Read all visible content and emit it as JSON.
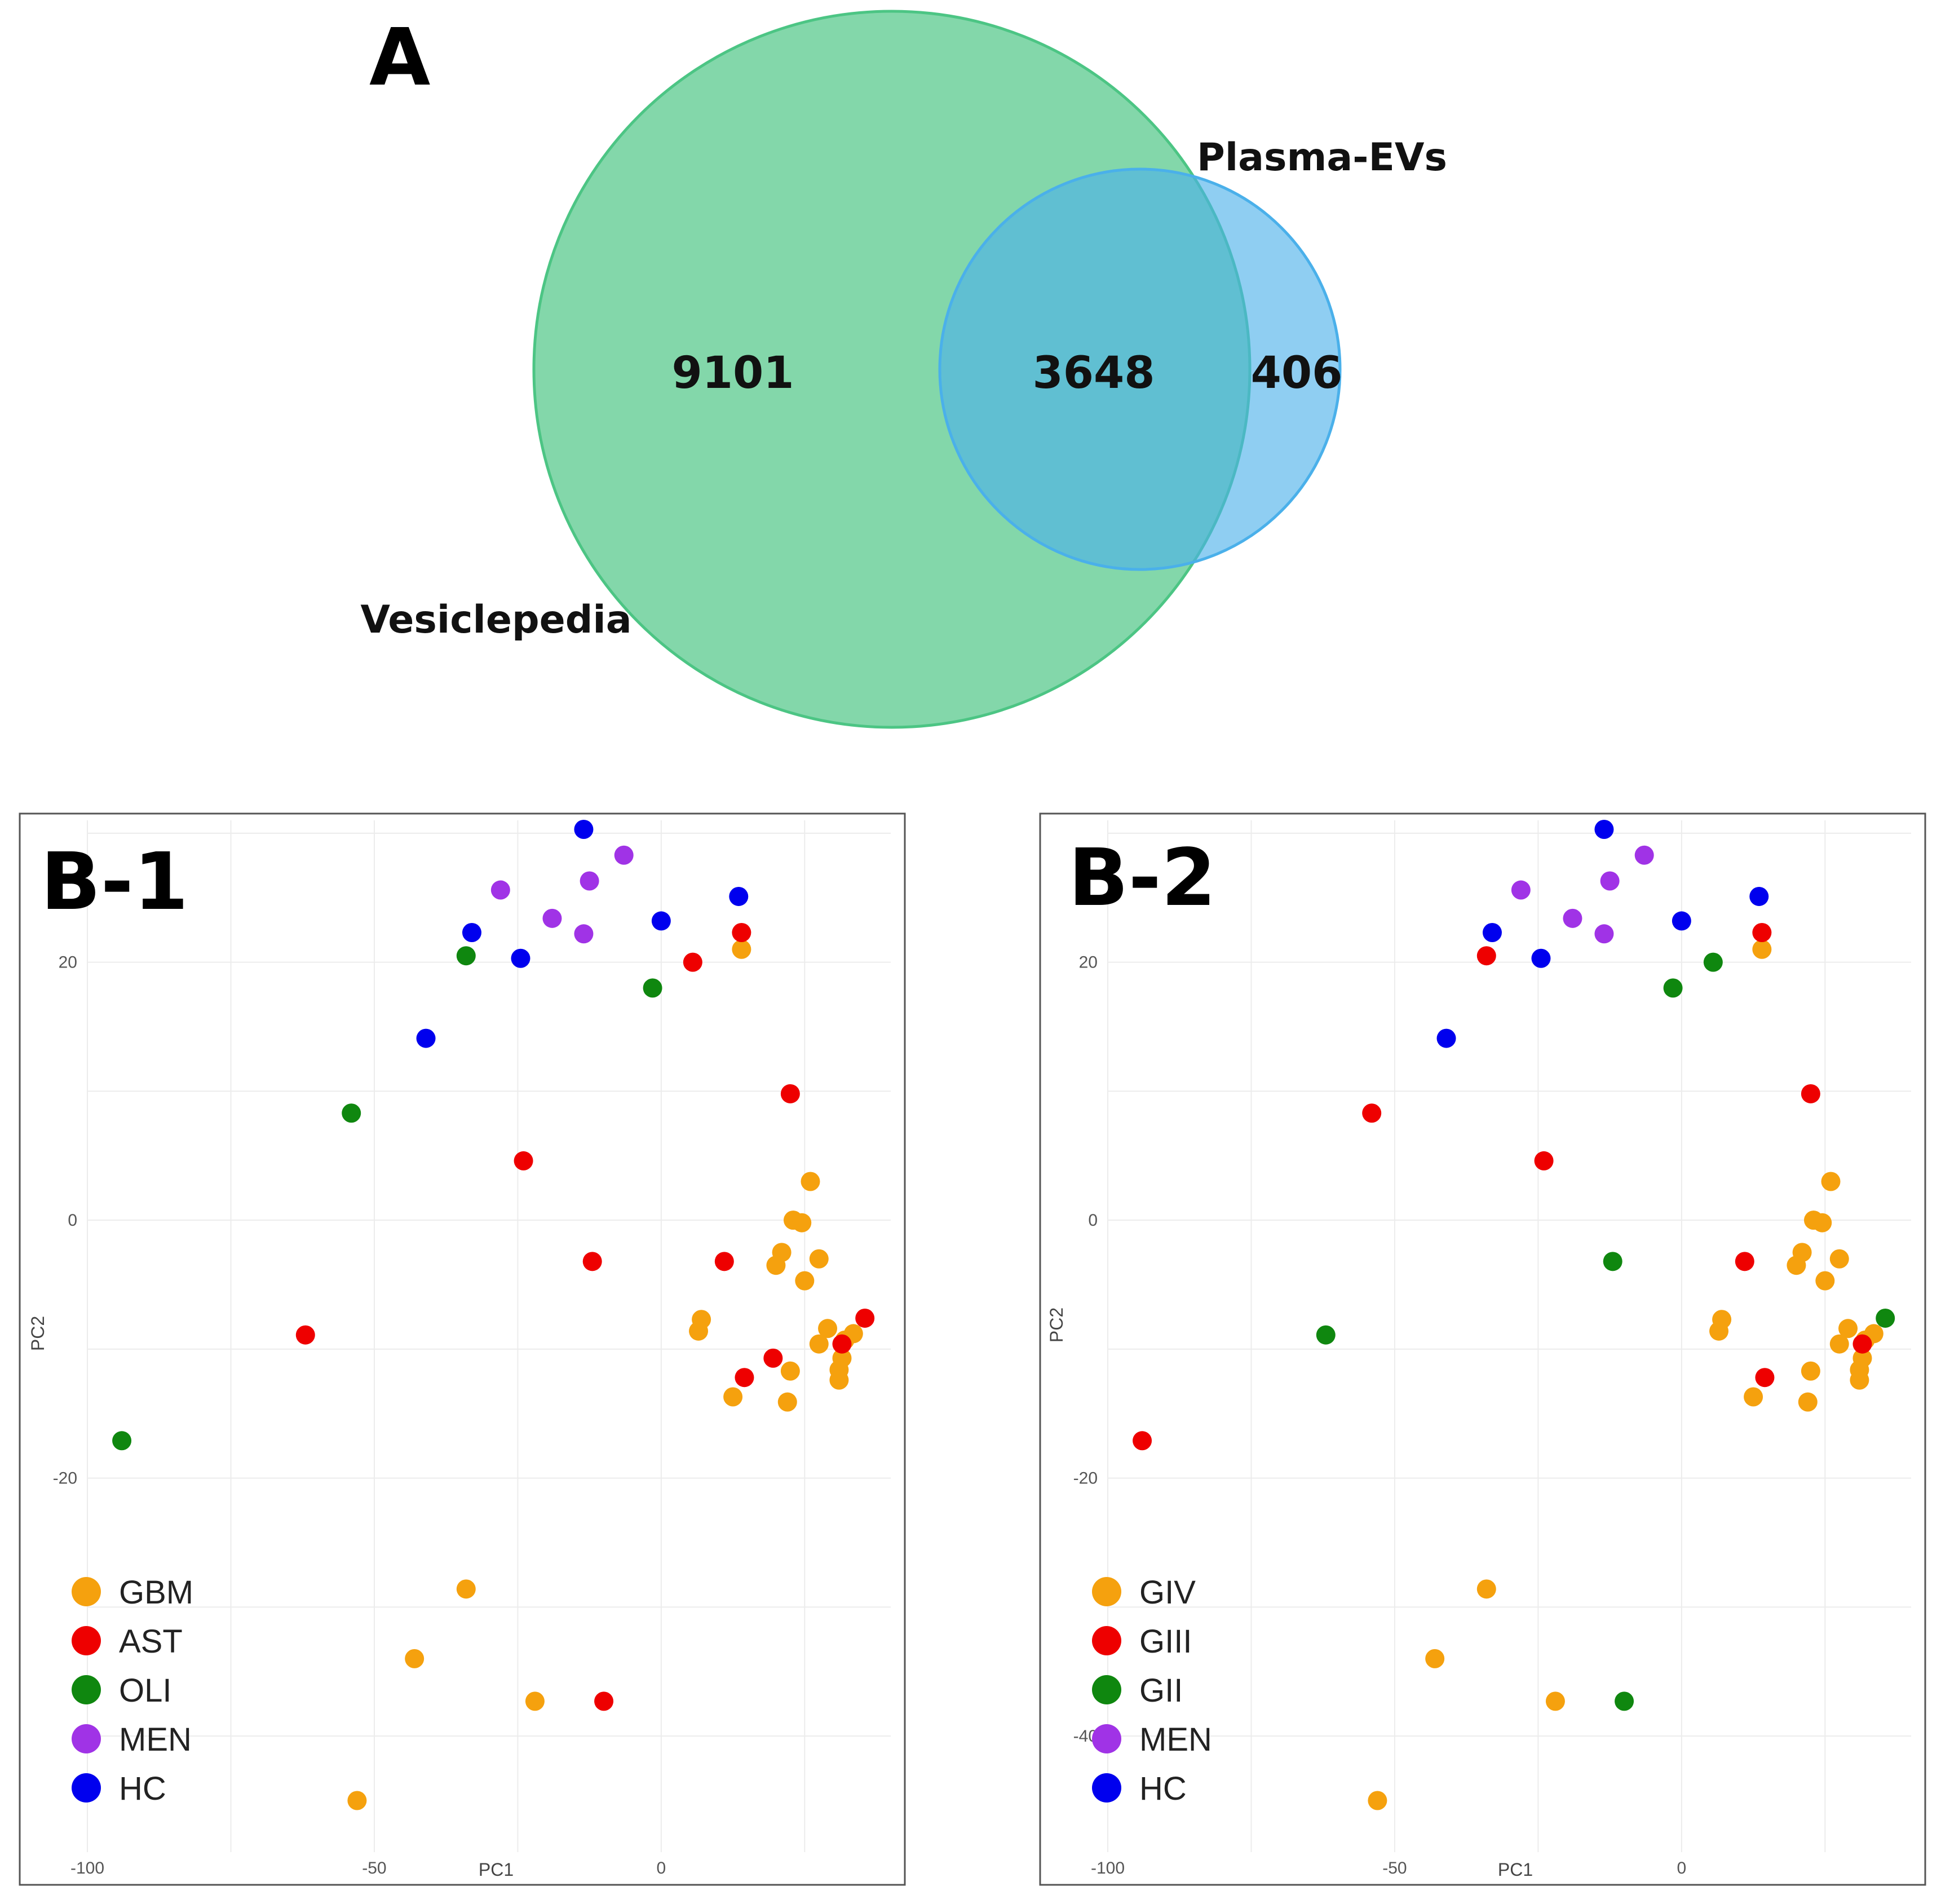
{
  "colors": {
    "GBM": "#f5a10e",
    "AST": "#ee0000",
    "OLI": "#0f870f",
    "MEN": "#a033e6",
    "HC": "#0000ee",
    "GIV": "#f5a10e",
    "GIII": "#ee0000",
    "GII": "#0f870f",
    "venn_left": "#4cc584",
    "venn_right": "#4ab0ea"
  },
  "chart_data": [
    {
      "type": "venn",
      "panel_label": "A",
      "sets": [
        {
          "name": "Vesiclepedia",
          "only": 9101
        },
        {
          "name": "Plasma-EVs",
          "only": 406
        }
      ],
      "intersection": 3648
    },
    {
      "type": "scatter",
      "panel_label": "B-1",
      "xlabel": "PC1",
      "ylabel": "PC2",
      "xlim": [
        -100,
        40
      ],
      "ylim": [
        -49,
        31
      ],
      "xticks": [
        -100,
        -50,
        0
      ],
      "yticks": [
        20,
        0,
        -20
      ],
      "legend": [
        "GBM",
        "AST",
        "OLI",
        "MEN",
        "HC"
      ],
      "series": [
        {
          "name": "GBM",
          "points": [
            [
              14,
              21
            ],
            [
              26,
              3
            ],
            [
              23,
              0
            ],
            [
              24.5,
              -0.2
            ],
            [
              21,
              -2.5
            ],
            [
              20,
              -3.5
            ],
            [
              27.5,
              -3
            ],
            [
              25,
              -4.7
            ],
            [
              7,
              -7.7
            ],
            [
              6.5,
              -8.6
            ],
            [
              29,
              -8.4
            ],
            [
              27.5,
              -9.6
            ],
            [
              33.5,
              -8.8
            ],
            [
              32,
              -9.3
            ],
            [
              31.5,
              -10.7
            ],
            [
              31,
              -11.6
            ],
            [
              31,
              -12.4
            ],
            [
              22.5,
              -11.7
            ],
            [
              12.5,
              -13.7
            ],
            [
              22,
              -14.1
            ],
            [
              -34,
              -28.6
            ],
            [
              -43,
              -34
            ],
            [
              -22,
              -37.3
            ],
            [
              -53,
              -45
            ]
          ]
        },
        {
          "name": "AST",
          "points": [
            [
              14,
              22.3
            ],
            [
              5.5,
              20
            ],
            [
              22.5,
              9.8
            ],
            [
              -24,
              4.6
            ],
            [
              -12,
              -3.2
            ],
            [
              11,
              -3.2
            ],
            [
              35.5,
              -7.6
            ],
            [
              31.5,
              -9.6
            ],
            [
              19.5,
              -10.7
            ],
            [
              14.5,
              -12.2
            ],
            [
              -62,
              -8.9
            ],
            [
              -10,
              -37.3
            ]
          ]
        },
        {
          "name": "OLI",
          "points": [
            [
              -34,
              20.5
            ],
            [
              -1.5,
              18
            ],
            [
              -54,
              8.3
            ],
            [
              -94,
              -17.1
            ]
          ]
        },
        {
          "name": "MEN",
          "points": [
            [
              -6.5,
              28.3
            ],
            [
              -12.5,
              26.3
            ],
            [
              -28,
              25.6
            ],
            [
              -19,
              23.4
            ],
            [
              -13.5,
              22.2
            ]
          ]
        },
        {
          "name": "HC",
          "points": [
            [
              -13.5,
              30.3
            ],
            [
              13.5,
              25.1
            ],
            [
              0,
              23.2
            ],
            [
              -33,
              22.3
            ],
            [
              -24.5,
              20.3
            ],
            [
              -41,
              14.1
            ]
          ]
        }
      ]
    },
    {
      "type": "scatter",
      "panel_label": "B-2",
      "xlabel": "PC1",
      "ylabel": "PC2",
      "xlim": [
        -100,
        40
      ],
      "ylim": [
        -49,
        31
      ],
      "xticks": [
        -100,
        -50,
        0
      ],
      "yticks": [
        20,
        0,
        -20,
        -40
      ],
      "legend": [
        "GIV",
        "GIII",
        "GII",
        "MEN",
        "HC"
      ],
      "series": [
        {
          "name": "GIV",
          "points": [
            [
              14,
              21
            ],
            [
              26,
              3
            ],
            [
              23,
              0
            ],
            [
              24.5,
              -0.2
            ],
            [
              21,
              -2.5
            ],
            [
              20,
              -3.5
            ],
            [
              27.5,
              -3
            ],
            [
              25,
              -4.7
            ],
            [
              7,
              -7.7
            ],
            [
              6.5,
              -8.6
            ],
            [
              29,
              -8.4
            ],
            [
              27.5,
              -9.6
            ],
            [
              33.5,
              -8.8
            ],
            [
              32,
              -9.3
            ],
            [
              31.5,
              -10.7
            ],
            [
              31,
              -11.6
            ],
            [
              31,
              -12.4
            ],
            [
              22.5,
              -11.7
            ],
            [
              12.5,
              -13.7
            ],
            [
              22,
              -14.1
            ],
            [
              -34,
              -28.6
            ],
            [
              -43,
              -34
            ],
            [
              -22,
              -37.3
            ],
            [
              -53,
              -45
            ]
          ]
        },
        {
          "name": "GIII",
          "points": [
            [
              14,
              22.3
            ],
            [
              -34,
              20.5
            ],
            [
              22.5,
              9.8
            ],
            [
              -24,
              4.6
            ],
            [
              -54,
              8.3
            ],
            [
              11,
              -3.2
            ],
            [
              31.5,
              -9.6
            ],
            [
              14.5,
              -12.2
            ],
            [
              -94,
              -17.1
            ]
          ]
        },
        {
          "name": "GII",
          "points": [
            [
              -1.5,
              18
            ],
            [
              5.5,
              20
            ],
            [
              -12,
              -3.2
            ],
            [
              35.5,
              -7.6
            ],
            [
              -62,
              -8.9
            ],
            [
              -10,
              -37.3
            ]
          ]
        },
        {
          "name": "MEN",
          "points": [
            [
              -6.5,
              28.3
            ],
            [
              -12.5,
              26.3
            ],
            [
              -28,
              25.6
            ],
            [
              -19,
              23.4
            ],
            [
              -13.5,
              22.2
            ]
          ]
        },
        {
          "name": "HC",
          "points": [
            [
              -13.5,
              30.3
            ],
            [
              13.5,
              25.1
            ],
            [
              0,
              23.2
            ],
            [
              -33,
              22.3
            ],
            [
              -24.5,
              20.3
            ],
            [
              -41,
              14.1
            ]
          ]
        }
      ]
    }
  ]
}
